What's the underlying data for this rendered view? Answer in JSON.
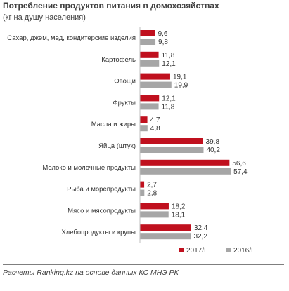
{
  "header": {
    "title": "Потребление продуктов питания  в домохозяйствах",
    "subtitle": "(кг на душу  населения)"
  },
  "footer": {
    "source": "Расчеты Ranking.kz на основе данных КС МНЭ РК"
  },
  "colors": {
    "series_2017": "#c0101e",
    "series_2016": "#a6a6a6"
  },
  "chart_data": {
    "type": "bar",
    "orientation": "horizontal",
    "categories": [
      "Сахар, джем, мед, кондитерские изделия",
      "Картофель",
      "Овощи",
      "Фрукты",
      "Масла и жиры",
      "Яйца (штук)",
      "Молоко и молочные продукты",
      "Рыба и морепродукты",
      "Мясо и мясопродукты",
      "Хлебопродукты и крупы"
    ],
    "series": [
      {
        "name": "2017/I",
        "color": "#c0101e",
        "values": [
          9.6,
          11.8,
          19.1,
          12.1,
          4.7,
          39.8,
          56.6,
          2.7,
          18.2,
          32.4
        ],
        "labels": [
          "9,6",
          "11,8",
          "19,1",
          "12,1",
          "4,7",
          "39,8",
          "56,6",
          "2,7",
          "18,2",
          "32,4"
        ]
      },
      {
        "name": "2016/I",
        "color": "#a6a6a6",
        "values": [
          9.8,
          12.1,
          19.9,
          11.8,
          4.8,
          40.2,
          57.4,
          2.8,
          18.1,
          32.2
        ],
        "labels": [
          "9,8",
          "12,1",
          "19,9",
          "11,8",
          "4,8",
          "40,2",
          "57,4",
          "2,8",
          "18,1",
          "32,2"
        ]
      }
    ],
    "xlim": [
      0,
      60
    ],
    "grid": false,
    "legend_position": "bottom-right"
  }
}
